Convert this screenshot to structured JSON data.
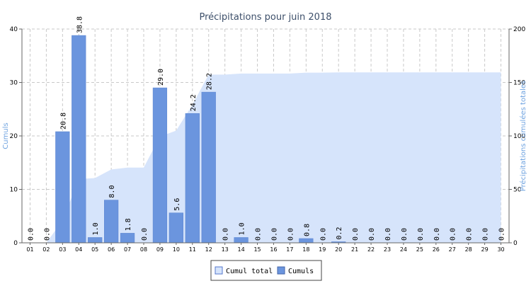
{
  "chart_data": {
    "type": "bar",
    "title": "Précipitations pour juin 2018",
    "ylabel_left": "Cumuls",
    "ylabel_right": "Précipitations cumulées totales",
    "categories": [
      "01",
      "02",
      "03",
      "04",
      "05",
      "06",
      "07",
      "08",
      "09",
      "10",
      "11",
      "12",
      "13",
      "14",
      "15",
      "16",
      "17",
      "18",
      "19",
      "20",
      "21",
      "22",
      "23",
      "24",
      "25",
      "26",
      "27",
      "28",
      "29",
      "30"
    ],
    "series": [
      {
        "name": "Cumuls",
        "type": "bar",
        "axis": "left",
        "values": [
          0.0,
          0.0,
          20.8,
          38.8,
          1.0,
          8.0,
          1.8,
          0.0,
          29.0,
          5.6,
          24.2,
          28.2,
          0.0,
          1.0,
          0.0,
          0.0,
          0.0,
          0.8,
          0.0,
          0.2,
          0.0,
          0.0,
          0.0,
          0.0,
          0.0,
          0.0,
          0.0,
          0.0,
          0.0,
          0.0
        ],
        "labels": [
          "0.0",
          "0.0",
          "20.8",
          "38.8",
          "1.0",
          "8.0",
          "1.8",
          "0.0",
          "29.0",
          "5.6",
          "24.2",
          "28.2",
          "0.0",
          "1.0",
          "0.0",
          "0.0",
          "0.0",
          "0.8",
          "0.0",
          "0.2",
          "0.0",
          "0.0",
          "0.0",
          "0.0",
          "0.0",
          "0.0",
          "0.0",
          "0.0",
          "0.0",
          "0.0"
        ]
      },
      {
        "name": "Cumul total",
        "type": "area",
        "axis": "right",
        "values": [
          0.0,
          0.0,
          20.8,
          59.6,
          60.6,
          68.6,
          70.4,
          70.4,
          99.4,
          105.0,
          129.2,
          157.4,
          157.4,
          158.4,
          158.4,
          158.4,
          158.4,
          159.2,
          159.2,
          159.4,
          159.4,
          159.4,
          159.4,
          159.4,
          159.4,
          159.4,
          159.4,
          159.4,
          159.4,
          159.4
        ]
      }
    ],
    "ylim_left": [
      0,
      40
    ],
    "yticks_left": [
      0,
      10,
      20,
      30,
      40
    ],
    "ylim_right": [
      0,
      200
    ],
    "yticks_right": [
      0,
      50,
      100,
      150,
      200
    ],
    "grid": true,
    "legend_position": "bottom-center",
    "legend": [
      {
        "name": "Cumul total",
        "color": "#d6e4fb",
        "border": "#5577cc"
      },
      {
        "name": "Cumuls",
        "color": "#6b95de",
        "border": "#4466aa"
      }
    ],
    "colors": {
      "bar": "#6b95de",
      "bar_edge": "#5a84d0",
      "area": "#d6e4fb",
      "grid": "#c9c9c9",
      "axis_label": "#6fa3e0",
      "title": "#3d4f6a"
    }
  }
}
